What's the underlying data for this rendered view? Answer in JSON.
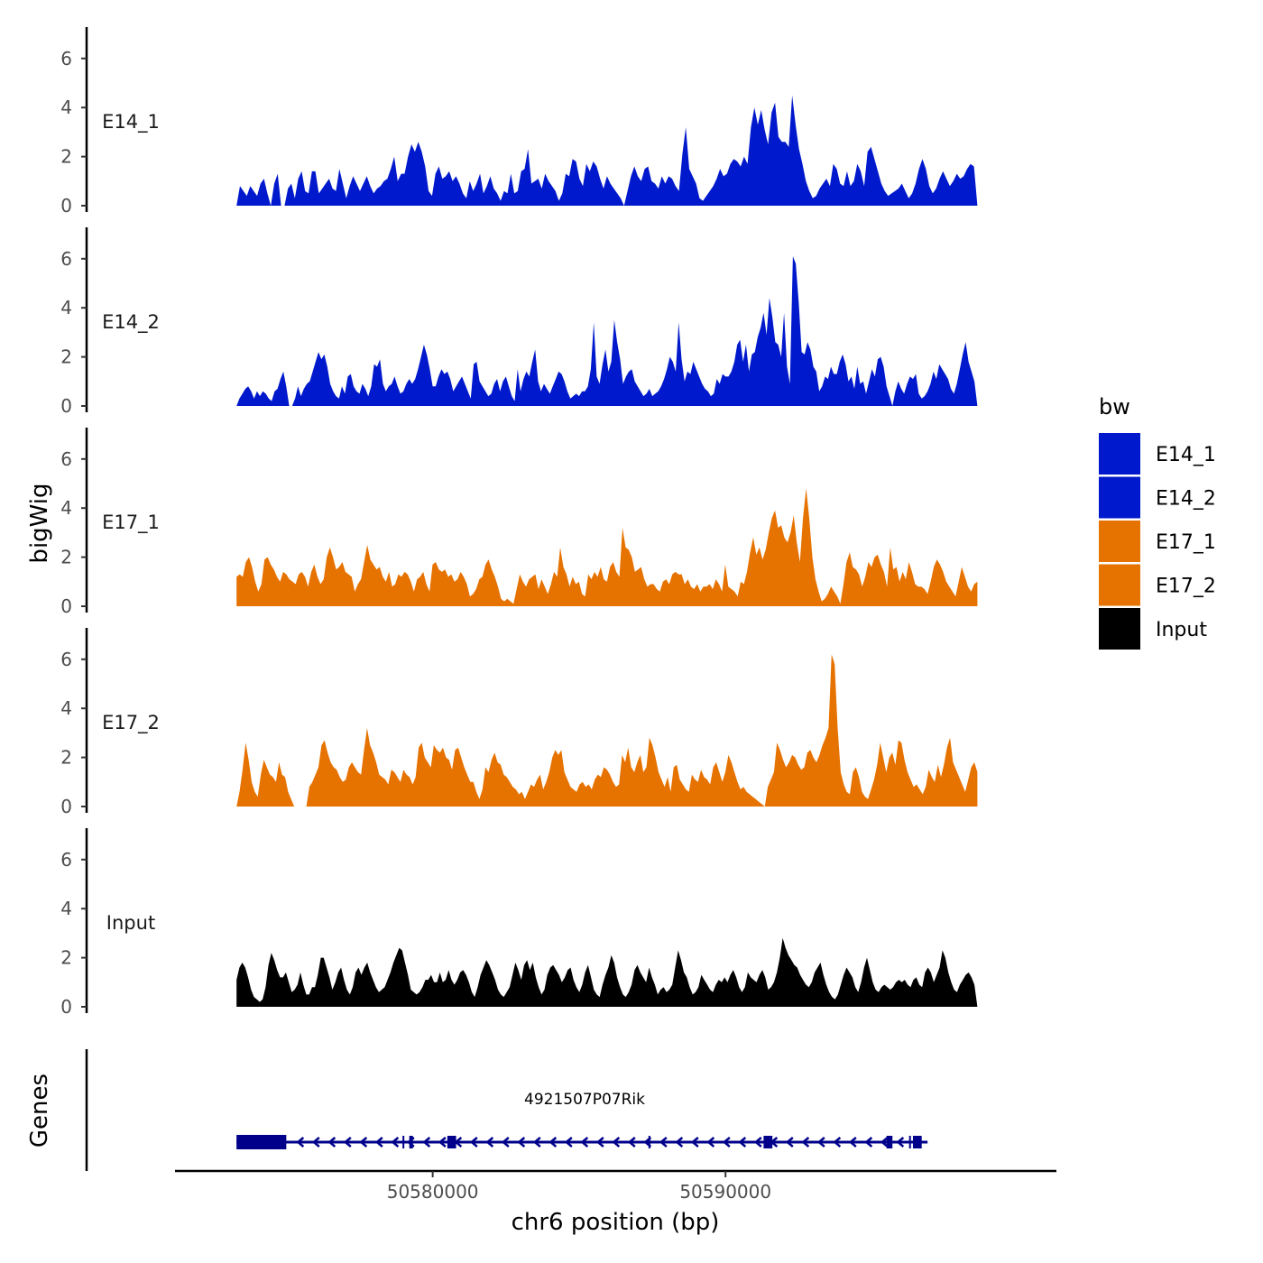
{
  "chart_data": {
    "type": "area",
    "ylabel": "bigWig",
    "xlabel": "chr6 position (bp)",
    "chromosome": "chr6",
    "x_range": [
      50573300,
      50598600
    ],
    "x_axis_range": [
      50571200,
      50601300
    ],
    "x_ticks": [
      50580000,
      50590000
    ],
    "x_tick_labels": [
      "50580000",
      "50590000"
    ],
    "y_range": [
      0,
      7
    ],
    "y_ticks": [
      0,
      2,
      4,
      6
    ],
    "y_tick_labels": [
      "0",
      "2",
      "4",
      "6"
    ],
    "colors": {
      "E14_1": "#0019cc",
      "E14_2": "#0019cc",
      "E17_1": "#e67200",
      "E17_2": "#e67200",
      "Input": "#000000"
    },
    "legend": {
      "title": "bw",
      "position": "right",
      "entries": [
        "E14_1",
        "E14_2",
        "E17_1",
        "E17_2",
        "Input"
      ]
    },
    "tracks": [
      {
        "name": "E14_1",
        "values": [
          0.0,
          0.8,
          0.6,
          0.4,
          0.8,
          0.6,
          0.4,
          0.9,
          1.1,
          0.5,
          0.0,
          0.9,
          1.3,
          0.0,
          0.0,
          0.7,
          0.9,
          0.3,
          1.1,
          1.4,
          0.6,
          0.5,
          1.4,
          1.4,
          0.5,
          0.7,
          0.9,
          1.1,
          0.7,
          0.6,
          1.5,
          0.9,
          0.3,
          0.8,
          1.2,
          0.9,
          0.6,
          0.9,
          1.2,
          0.8,
          0.5,
          0.7,
          0.8,
          1.0,
          1.1,
          1.5,
          2.0,
          1.0,
          1.3,
          1.3,
          2.0,
          2.5,
          2.2,
          2.6,
          2.2,
          1.6,
          0.6,
          0.4,
          1.3,
          1.6,
          1.1,
          1.2,
          1.4,
          1.0,
          1.2,
          0.9,
          0.5,
          0.3,
          1.0,
          0.6,
          0.9,
          1.3,
          0.5,
          0.8,
          1.2,
          0.7,
          0.5,
          0.2,
          0.6,
          0.5,
          1.3,
          0.5,
          0.6,
          1.4,
          1.5,
          2.3,
          0.9,
          1.0,
          1.1,
          0.7,
          1.3,
          1.0,
          0.8,
          0.6,
          0.2,
          0.5,
          1.3,
          1.2,
          1.9,
          1.8,
          1.1,
          0.8,
          1.7,
          1.4,
          1.8,
          1.6,
          1.1,
          0.7,
          1.2,
          0.9,
          0.7,
          0.5,
          0.3,
          0.0,
          0.6,
          1.2,
          1.6,
          1.2,
          1.0,
          1.5,
          1.6,
          1.0,
          0.9,
          0.7,
          1.2,
          0.9,
          1.2,
          1.1,
          0.8,
          0.6,
          2.1,
          3.2,
          1.5,
          1.2,
          0.9,
          0.3,
          0.2,
          0.4,
          0.6,
          0.8,
          1.1,
          1.5,
          1.2,
          1.3,
          1.7,
          1.9,
          1.8,
          1.6,
          2.0,
          1.7,
          3.2,
          4.0,
          3.3,
          3.9,
          3.1,
          2.5,
          3.8,
          4.2,
          2.8,
          2.6,
          2.6,
          2.4,
          4.5,
          3.3,
          2.3,
          1.7,
          1.0,
          0.6,
          0.3,
          0.4,
          0.7,
          0.9,
          1.1,
          0.8,
          1.7,
          1.5,
          0.9,
          0.8,
          1.4,
          0.8,
          1.0,
          1.7,
          1.4,
          0.8,
          2.2,
          2.4,
          1.9,
          1.4,
          0.9,
          0.6,
          0.4,
          0.5,
          0.6,
          0.7,
          0.9,
          0.6,
          0.3,
          0.5,
          0.9,
          1.5,
          1.9,
          1.5,
          0.8,
          0.5,
          0.7,
          1.1,
          1.4,
          1.1,
          0.8,
          1.0,
          1.3,
          1.1,
          1.2,
          1.5,
          1.7,
          1.6,
          0.0
        ]
      },
      {
        "name": "E14_2",
        "values": [
          0.0,
          0.3,
          0.5,
          0.7,
          0.8,
          0.6,
          0.3,
          0.6,
          0.4,
          0.6,
          0.5,
          0.3,
          0.2,
          0.6,
          0.7,
          1.1,
          1.4,
          0.8,
          0.0,
          0.0,
          0.3,
          0.8,
          0.4,
          0.7,
          0.9,
          1.0,
          1.4,
          1.8,
          2.2,
          1.9,
          2.1,
          1.6,
          0.9,
          0.6,
          0.4,
          0.3,
          0.8,
          0.5,
          1.2,
          1.3,
          0.8,
          0.6,
          0.5,
          0.9,
          0.7,
          0.4,
          0.8,
          1.7,
          1.6,
          1.9,
          0.9,
          0.6,
          0.8,
          0.9,
          1.2,
          0.8,
          0.5,
          0.6,
          0.9,
          1.1,
          0.9,
          1.1,
          1.5,
          2.0,
          2.5,
          2.1,
          1.5,
          0.8,
          0.8,
          1.2,
          1.5,
          1.3,
          1.4,
          1.1,
          0.6,
          0.8,
          1.0,
          1.2,
          0.9,
          0.6,
          0.3,
          1.7,
          1.8,
          1.0,
          0.8,
          0.6,
          0.4,
          0.5,
          0.9,
          1.1,
          0.6,
          1.0,
          1.2,
          0.8,
          0.4,
          0.2,
          1.5,
          0.6,
          1.1,
          1.4,
          1.2,
          1.8,
          2.3,
          1.0,
          0.6,
          0.9,
          0.7,
          0.5,
          0.8,
          1.1,
          1.4,
          1.3,
          1.0,
          0.6,
          0.3,
          0.4,
          0.5,
          0.4,
          0.6,
          0.6,
          0.8,
          1.5,
          3.4,
          1.2,
          0.9,
          1.7,
          2.3,
          1.4,
          1.8,
          3.5,
          2.6,
          1.9,
          0.9,
          1.2,
          1.4,
          1.5,
          1.0,
          0.8,
          0.6,
          0.4,
          0.5,
          0.7,
          0.4,
          0.5,
          0.6,
          0.8,
          1.1,
          1.5,
          2.0,
          1.8,
          1.4,
          3.4,
          1.9,
          1.0,
          1.4,
          1.3,
          1.8,
          1.5,
          1.2,
          0.9,
          0.7,
          0.6,
          0.4,
          0.5,
          1.1,
          0.9,
          1.3,
          1.2,
          1.2,
          1.4,
          1.8,
          2.5,
          2.7,
          1.8,
          2.5,
          1.4,
          2.1,
          2.2,
          2.8,
          3.2,
          3.8,
          2.9,
          4.4,
          3.6,
          2.6,
          2.5,
          2.0,
          3.8,
          1.6,
          0.9,
          6.1,
          5.8,
          4.2,
          2.2,
          2.1,
          2.6,
          2.3,
          1.6,
          1.4,
          0.6,
          0.8,
          1.2,
          1.1,
          1.6,
          1.3,
          1.3,
          1.8,
          2.1,
          1.7,
          1.0,
          1.2,
          0.7,
          1.6,
          0.9,
          1.0,
          0.5,
          1.0,
          1.5,
          1.2,
          1.9,
          2.0,
          1.6,
          0.8,
          0.4,
          0.0,
          0.6,
          1.0,
          0.7,
          0.5,
          0.9,
          1.2,
          1.1,
          1.3,
          0.5,
          0.3,
          0.4,
          0.6,
          0.9,
          1.4,
          1.1,
          1.7,
          1.5,
          1.3,
          1.1,
          0.7,
          0.5,
          0.9,
          1.5,
          2.1,
          2.6,
          1.8,
          1.4,
          1.0,
          0.0
        ]
      },
      {
        "name": "E17_1",
        "values": [
          1.2,
          1.3,
          1.2,
          1.8,
          2.0,
          1.6,
          1.0,
          0.6,
          0.9,
          1.9,
          2.0,
          1.7,
          1.5,
          1.2,
          1.0,
          1.4,
          1.3,
          1.1,
          1.0,
          0.9,
          1.3,
          1.4,
          1.2,
          0.8,
          1.4,
          1.7,
          1.2,
          0.9,
          1.1,
          2.0,
          2.4,
          2.0,
          1.5,
          1.6,
          1.8,
          1.4,
          1.3,
          1.2,
          0.6,
          0.9,
          1.1,
          1.8,
          2.5,
          1.9,
          1.7,
          1.5,
          1.6,
          1.2,
          1.0,
          1.4,
          0.8,
          0.9,
          1.3,
          1.2,
          1.4,
          1.3,
          1.0,
          0.6,
          1.1,
          1.2,
          1.4,
          0.9,
          0.6,
          1.7,
          1.8,
          1.5,
          1.4,
          1.5,
          1.2,
          1.3,
          1.0,
          1.1,
          1.4,
          1.2,
          0.9,
          0.4,
          0.5,
          0.7,
          1.1,
          1.2,
          1.7,
          1.9,
          1.5,
          1.2,
          0.8,
          0.3,
          0.2,
          0.3,
          0.2,
          0.1,
          0.7,
          1.3,
          1.0,
          0.8,
          1.1,
          1.2,
          1.3,
          0.7,
          1.1,
          0.8,
          0.5,
          0.9,
          1.4,
          1.2,
          2.4,
          1.6,
          1.3,
          0.8,
          1.2,
          0.9,
          1.0,
          0.5,
          0.4,
          1.3,
          1.1,
          1.4,
          1.2,
          1.6,
          1.1,
          1.0,
          1.6,
          1.8,
          1.4,
          1.2,
          3.2,
          2.4,
          2.3,
          2.0,
          1.4,
          1.5,
          1.6,
          1.1,
          0.8,
          0.9,
          0.9,
          0.7,
          0.6,
          1.0,
          1.1,
          0.9,
          1.3,
          1.4,
          1.3,
          1.3,
          0.9,
          1.1,
          0.8,
          0.7,
          0.9,
          0.6,
          0.8,
          0.8,
          0.9,
          0.7,
          1.1,
          0.9,
          0.6,
          1.7,
          0.8,
          0.7,
          0.6,
          0.4,
          1.0,
          0.9,
          1.4,
          2.2,
          2.8,
          2.1,
          2.4,
          1.9,
          2.3,
          3.0,
          3.6,
          3.9,
          3.2,
          3.3,
          2.8,
          2.6,
          3.0,
          3.7,
          2.6,
          1.8,
          3.6,
          4.8,
          3.6,
          2.0,
          1.1,
          0.6,
          0.2,
          0.3,
          0.5,
          0.8,
          0.6,
          0.4,
          0.1,
          0.9,
          1.8,
          2.2,
          1.6,
          1.5,
          1.3,
          0.8,
          1.2,
          1.8,
          1.6,
          2.0,
          2.1,
          1.7,
          1.4,
          0.8,
          2.4,
          1.5,
          1.6,
          1.0,
          1.4,
          1.1,
          1.8,
          1.4,
          0.9,
          0.8,
          0.8,
          0.7,
          0.5,
          1.0,
          1.6,
          1.9,
          1.7,
          1.4,
          1.0,
          0.8,
          0.6,
          0.4,
          1.0,
          1.6,
          1.2,
          0.8,
          0.6,
          0.9,
          1.0
        ]
      },
      {
        "name": "E17_2",
        "values": [
          0.0,
          0.6,
          1.5,
          2.6,
          1.9,
          1.0,
          0.6,
          0.4,
          1.3,
          1.9,
          1.6,
          1.3,
          1.2,
          1.0,
          1.8,
          1.3,
          1.2,
          0.6,
          0.3,
          0.0,
          0.0,
          0.0,
          0.0,
          0.0,
          0.8,
          1.0,
          1.3,
          1.6,
          2.5,
          2.7,
          2.2,
          1.8,
          1.6,
          1.5,
          1.2,
          1.0,
          1.1,
          1.6,
          1.8,
          1.6,
          1.4,
          1.3,
          2.3,
          3.2,
          2.5,
          2.2,
          1.8,
          1.3,
          1.2,
          1.1,
          0.9,
          1.5,
          1.4,
          1.2,
          1.0,
          1.5,
          1.3,
          1.2,
          0.9,
          1.2,
          2.4,
          2.6,
          2.0,
          1.8,
          1.6,
          2.5,
          2.3,
          2.2,
          2.4,
          2.0,
          1.9,
          1.5,
          2.3,
          2.4,
          2.0,
          1.6,
          1.3,
          1.0,
          1.0,
          0.6,
          0.3,
          0.7,
          1.6,
          1.4,
          1.9,
          2.2,
          1.8,
          1.7,
          1.3,
          1.2,
          1.0,
          0.8,
          0.7,
          0.5,
          0.6,
          0.3,
          0.6,
          0.9,
          0.8,
          1.1,
          1.3,
          0.7,
          1.0,
          1.4,
          2.0,
          2.3,
          2.1,
          2.3,
          1.4,
          1.1,
          0.8,
          0.7,
          0.6,
          0.9,
          1.0,
          0.8,
          0.9,
          0.7,
          1.1,
          1.3,
          1.2,
          1.6,
          1.5,
          1.3,
          1.0,
          0.8,
          0.9,
          2.1,
          1.8,
          2.4,
          1.6,
          1.4,
          1.8,
          2.1,
          1.4,
          1.6,
          2.8,
          2.5,
          2.0,
          1.4,
          1.1,
          0.8,
          1.2,
          0.6,
          1.6,
          1.7,
          1.1,
          0.9,
          0.7,
          0.6,
          1.3,
          1.1,
          1.0,
          1.5,
          1.2,
          1.1,
          0.9,
          1.6,
          1.8,
          1.4,
          1.0,
          1.4,
          2.1,
          1.8,
          1.4,
          1.0,
          0.7,
          0.8,
          0.6,
          0.5,
          0.4,
          0.3,
          0.2,
          0.1,
          0.0,
          0.8,
          1.1,
          1.4,
          2.6,
          2.3,
          1.9,
          1.6,
          1.8,
          2.1,
          2.0,
          1.7,
          1.5,
          1.6,
          2.2,
          2.3,
          2.0,
          1.8,
          2.1,
          2.5,
          2.8,
          3.2,
          6.2,
          5.8,
          3.2,
          1.4,
          0.9,
          0.6,
          0.5,
          1.4,
          1.6,
          1.2,
          0.6,
          0.4,
          0.3,
          0.7,
          1.1,
          1.7,
          2.6,
          2.0,
          1.4,
          2.0,
          2.2,
          1.7,
          2.7,
          2.6,
          1.9,
          1.4,
          1.1,
          0.8,
          0.9,
          0.7,
          0.5,
          0.8,
          1.5,
          1.2,
          1.0,
          1.7,
          1.2,
          1.7,
          2.4,
          2.8,
          1.8,
          1.5,
          1.2,
          0.9,
          0.6,
          1.1,
          1.6,
          1.8,
          1.4
        ]
      },
      {
        "name": "Input",
        "values": [
          1.1,
          1.6,
          1.8,
          1.6,
          1.2,
          0.7,
          0.4,
          0.3,
          0.2,
          0.3,
          0.8,
          1.7,
          2.2,
          1.9,
          1.5,
          1.2,
          1.2,
          1.4,
          1.0,
          0.6,
          0.7,
          0.9,
          1.4,
          0.9,
          0.5,
          0.5,
          0.8,
          0.8,
          1.3,
          2.0,
          2.0,
          1.6,
          1.2,
          0.7,
          1.0,
          1.4,
          1.6,
          1.1,
          0.7,
          0.5,
          0.8,
          1.4,
          1.6,
          1.3,
          1.6,
          1.8,
          1.4,
          1.1,
          0.8,
          0.6,
          0.7,
          0.8,
          1.1,
          1.4,
          1.8,
          2.1,
          2.4,
          2.3,
          1.8,
          1.3,
          0.7,
          0.6,
          0.5,
          0.6,
          0.8,
          1.1,
          1.1,
          1.3,
          1.0,
          1.0,
          1.4,
          1.0,
          1.1,
          1.5,
          1.1,
          0.9,
          1.1,
          1.4,
          1.5,
          1.3,
          1.0,
          0.6,
          0.4,
          0.8,
          1.3,
          1.6,
          1.9,
          1.7,
          1.4,
          1.1,
          0.7,
          0.5,
          0.4,
          0.6,
          0.8,
          1.3,
          1.8,
          1.5,
          1.1,
          1.7,
          1.9,
          1.5,
          1.8,
          1.2,
          0.8,
          0.5,
          0.7,
          1.3,
          1.6,
          1.7,
          1.5,
          1.3,
          1.0,
          1.2,
          1.5,
          1.6,
          1.1,
          0.8,
          0.6,
          0.9,
          1.4,
          1.7,
          1.2,
          0.7,
          0.5,
          0.4,
          0.9,
          1.3,
          1.6,
          2.1,
          1.8,
          1.2,
          0.8,
          0.5,
          0.4,
          0.6,
          0.9,
          1.5,
          1.7,
          1.4,
          1.2,
          1.0,
          1.6,
          1.2,
          0.9,
          0.5,
          0.7,
          0.8,
          0.6,
          0.7,
          0.9,
          1.6,
          2.3,
          1.9,
          1.4,
          1.2,
          0.8,
          0.5,
          0.6,
          0.8,
          1.3,
          1.1,
          0.9,
          0.7,
          0.6,
          0.9,
          1.1,
          1.0,
          1.2,
          1.0,
          1.3,
          1.5,
          1.2,
          0.8,
          0.6,
          0.8,
          1.4,
          1.2,
          1.1,
          1.0,
          1.3,
          1.5,
          1.2,
          0.7,
          0.8,
          1.0,
          1.4,
          2.0,
          2.8,
          2.4,
          2.1,
          1.9,
          1.7,
          1.6,
          1.3,
          1.1,
          0.9,
          0.8,
          1.0,
          1.4,
          1.6,
          1.8,
          1.3,
          0.9,
          0.6,
          0.4,
          0.3,
          0.5,
          0.9,
          1.3,
          1.6,
          1.4,
          1.2,
          0.8,
          0.6,
          1.0,
          1.6,
          2.0,
          1.5,
          1.0,
          0.7,
          0.6,
          0.8,
          0.9,
          0.8,
          0.7,
          0.8,
          1.0,
          1.1,
          1.0,
          1.1,
          0.9,
          0.8,
          1.1,
          1.2,
          0.9,
          0.8,
          1.4,
          1.6,
          1.4,
          1.0,
          1.3,
          1.6,
          2.3,
          2.0,
          1.4,
          1.0,
          0.7,
          0.6,
          0.9,
          1.1,
          1.3,
          1.4,
          1.2,
          0.9,
          0.0
        ]
      }
    ],
    "genes_label": "Genes",
    "gene": {
      "name": "4921507P07Rik",
      "strand": "-",
      "start": 50573300,
      "end": 50596900,
      "exons": [
        [
          50573300,
          50575000
        ],
        [
          50579200,
          50579300
        ],
        [
          50580500,
          50580800
        ],
        [
          50591300,
          50591600
        ],
        [
          50595500,
          50595700
        ],
        [
          50596400,
          50596700
        ]
      ],
      "color": "#00008b"
    }
  }
}
